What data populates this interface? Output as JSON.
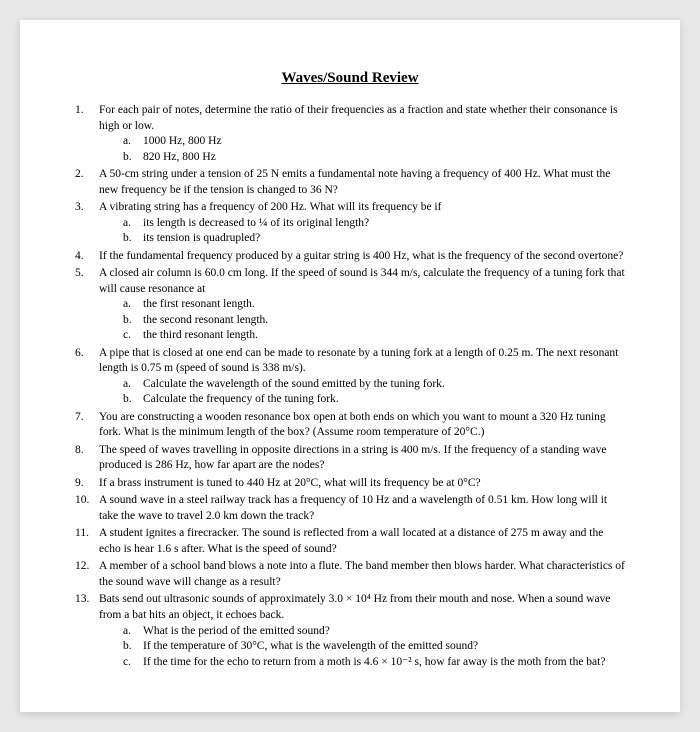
{
  "document": {
    "title": "Waves/Sound Review",
    "title_fontsize": 15,
    "body_fontsize": 11.5,
    "font_family": "Times New Roman",
    "background_color": "#e8e8e8",
    "page_color": "#ffffff",
    "text_color": "#000000"
  },
  "questions": [
    {
      "text": "For each pair of notes, determine the ratio of their frequencies as a fraction and state whether their consonance is high or low.",
      "subs": [
        "1000 Hz, 800 Hz",
        "820 Hz, 800 Hz"
      ]
    },
    {
      "text": "A 50-cm string under a tension of 25 N emits a fundamental note having a frequency of 400 Hz. What must the new frequency be if the tension is changed to 36 N?",
      "subs": []
    },
    {
      "text": "A vibrating string has a frequency of 200 Hz. What will its frequency be if",
      "subs": [
        "its length is decreased to ¼ of its original length?",
        "its tension is quadrupled?"
      ]
    },
    {
      "text": "If the fundamental frequency produced by a guitar string is 400 Hz, what is the frequency of the second overtone?",
      "subs": []
    },
    {
      "text": "A closed air column is 60.0 cm long. If the speed of sound is 344 m/s, calculate the frequency of a tuning fork that will cause resonance at",
      "subs": [
        "the first resonant length.",
        "the second resonant length.",
        "the third resonant length."
      ]
    },
    {
      "text": "A pipe that is closed at one end can be made to resonate by a tuning fork at a length of 0.25 m. The next resonant length is 0.75 m (speed of sound is 338 m/s).",
      "subs": [
        "Calculate the wavelength of the sound emitted by the tuning fork.",
        "Calculate the frequency of the tuning fork."
      ]
    },
    {
      "text": "You are constructing a wooden resonance box open at both ends on which you want to mount a 320 Hz tuning fork. What is the minimum length of the box? (Assume room temperature of 20°C.)",
      "subs": []
    },
    {
      "text": "The speed of waves travelling in opposite directions in a string is 400 m/s. If the frequency of a standing wave produced is 286 Hz, how far apart are the nodes?",
      "subs": []
    },
    {
      "text": "If a brass instrument is tuned to 440 Hz at 20°C, what will its frequency be at 0°C?",
      "subs": []
    },
    {
      "text": "A sound wave in a steel railway track has a frequency of 10 Hz and a wavelength of 0.51 km. How long will it take the wave to travel 2.0 km down the track?",
      "subs": []
    },
    {
      "text": "A student ignites a firecracker. The sound is reflected from a wall located at a distance of 275 m away and the echo is hear 1.6 s after. What is the speed of sound?",
      "subs": []
    },
    {
      "text": "A member of a school band blows a note into a flute. The band member then blows harder. What characteristics of the sound wave will change as a result?",
      "subs": []
    },
    {
      "text": "Bats send out ultrasonic sounds of approximately 3.0 × 10⁴ Hz from their mouth and nose. When a sound wave from a bat hits an object, it echoes back.",
      "subs": [
        "What is the period of the emitted sound?",
        "If the temperature of 30°C, what is the wavelength of the emitted sound?",
        "If the time for the echo to return from a moth is 4.6 × 10⁻² s, how far away is the moth from the bat?"
      ]
    }
  ]
}
